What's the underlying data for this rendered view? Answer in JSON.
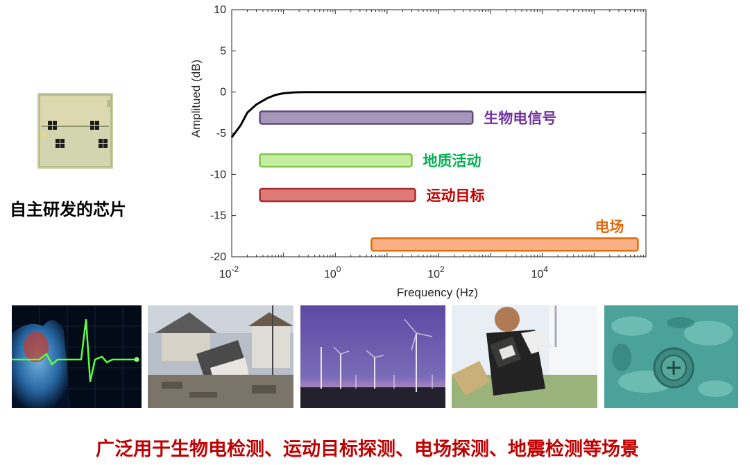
{
  "chip": {
    "caption": "自主研发的芯片",
    "icon": "chip-die-photo"
  },
  "chart_data": {
    "type": "line",
    "xlabel": "Frequency (Hz)",
    "ylabel": "Amplitued (dB)",
    "x_scale": "log",
    "xlim": [
      0.01,
      1000000
    ],
    "ylim": [
      -20,
      10
    ],
    "x_ticks": [
      {
        "value": 0.01,
        "base": "10",
        "exp": "-2"
      },
      {
        "value": 1,
        "base": "10",
        "exp": "0"
      },
      {
        "value": 100,
        "base": "10",
        "exp": "2"
      },
      {
        "value": 10000,
        "base": "10",
        "exp": "4"
      }
    ],
    "y_ticks": [
      10,
      5,
      0,
      -5,
      -10,
      -15,
      -20
    ],
    "series": [
      {
        "color": "#000000",
        "x": [
          0.01,
          0.015,
          0.02,
          0.03,
          0.05,
          0.07,
          0.1,
          0.15,
          0.2,
          0.3,
          1,
          10,
          100,
          1000,
          10000,
          100000,
          1000000
        ],
        "y": [
          -5.5,
          -4,
          -2.5,
          -1.5,
          -0.7,
          -0.35,
          -0.15,
          -0.05,
          -0.02,
          0,
          0,
          0,
          0,
          0,
          0,
          0,
          0
        ]
      }
    ],
    "bands": [
      {
        "label": "生物电信号",
        "x0": 0.035,
        "x1": 450,
        "y": -3.1,
        "fill": "#a597b9",
        "stroke": "#5e4a7d",
        "text_color": "#7030a0"
      },
      {
        "label": "地质活动",
        "x0": 0.035,
        "x1": 30,
        "y": -8.3,
        "fill": "#c6eea0",
        "stroke": "#7cc443",
        "text_color": "#00b050"
      },
      {
        "label": "运动目标",
        "x0": 0.035,
        "x1": 35,
        "y": -12.5,
        "fill": "#e07a78",
        "stroke": "#a52a2a",
        "text_color": "#c00000"
      },
      {
        "label": "电场",
        "x0": 5,
        "x1": 700000,
        "y": -18.5,
        "fill": "#f7b184",
        "stroke": "#e26b0a",
        "text_color": "#e26b0a"
      }
    ]
  },
  "photos": [
    {
      "name": "ecg-heart-photo"
    },
    {
      "name": "earthquake-ruins-photo"
    },
    {
      "name": "wind-turbines-photo"
    },
    {
      "name": "goalkeeper-photo"
    },
    {
      "name": "corroded-metal-photo"
    }
  ],
  "bottom_caption": "广泛用于生物电检测、运动目标探测、电场探测、地震检测等场景"
}
